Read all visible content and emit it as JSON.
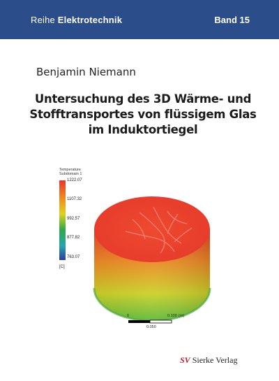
{
  "header": {
    "series_prefix": "Reihe",
    "series_name": "Elektrotechnik",
    "volume": "Band 15",
    "background": "#2b4d8a"
  },
  "author": "Benjamin Niemann",
  "title_lines": [
    "Untersuchung des 3D Wärme- und",
    "Stofftransportes von flüssigem Glas",
    "im Induktortiegel"
  ],
  "figure": {
    "legend": {
      "title_line1": "Temperature",
      "title_line2": "Subdomain 1",
      "ticks": [
        "1222.07",
        "1107.32",
        "992.57",
        "877.82",
        "763.07"
      ],
      "unit": "[C]"
    },
    "scale_bar": {
      "label_zero": "0",
      "label_mid": "0.100",
      "label_unit": "(m)",
      "label_sub": "0.050"
    },
    "colors": {
      "hot": "#e8382a",
      "mid": "#dcd31f",
      "cool": "#2fa84a",
      "cold": "#2e3e9e"
    }
  },
  "publisher": {
    "logo": "SV",
    "name": "Sierke Verlag",
    "logo_color": "#c2181f"
  }
}
